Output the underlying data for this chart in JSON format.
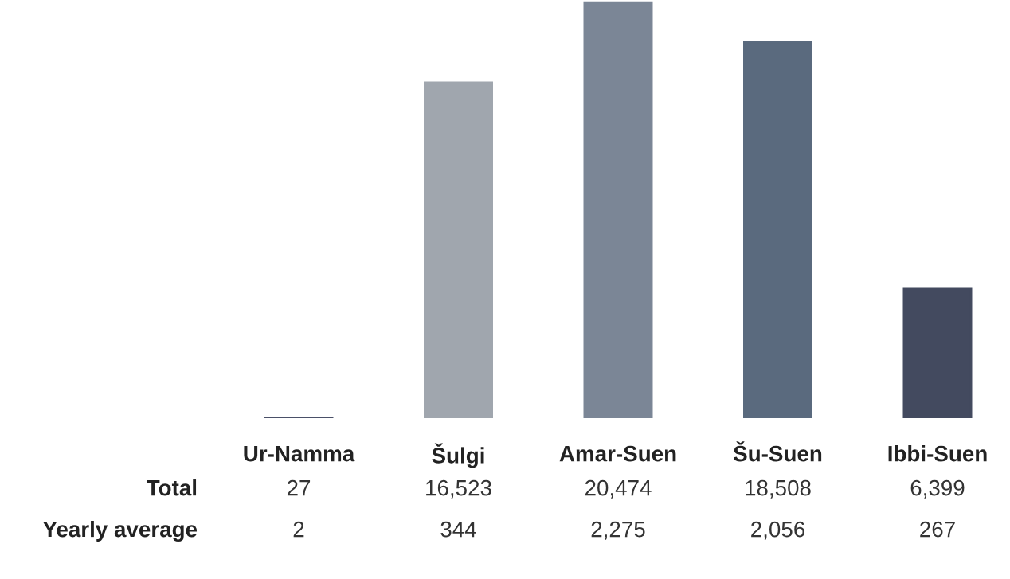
{
  "chart_data": {
    "type": "bar",
    "categories": [
      "Ur-Namma",
      "Šulgi",
      "Amar-Suen",
      "Šu-Suen",
      "Ibbi-Suen"
    ],
    "series": [
      {
        "name": "Total",
        "values": [
          27,
          16523,
          20474,
          18508,
          6399
        ],
        "colors": [
          "#4a5068",
          "#a0a6ae",
          "#7b8696",
          "#5a6a7e",
          "#434a5f"
        ],
        "value_labels": [
          "27",
          "16,523",
          "20,474",
          "18,508",
          "6,399"
        ]
      }
    ],
    "data_labels": true,
    "annotations": [
      "Yearly average",
      "2",
      "344",
      "2,275",
      "2,056",
      "267"
    ]
  }
}
